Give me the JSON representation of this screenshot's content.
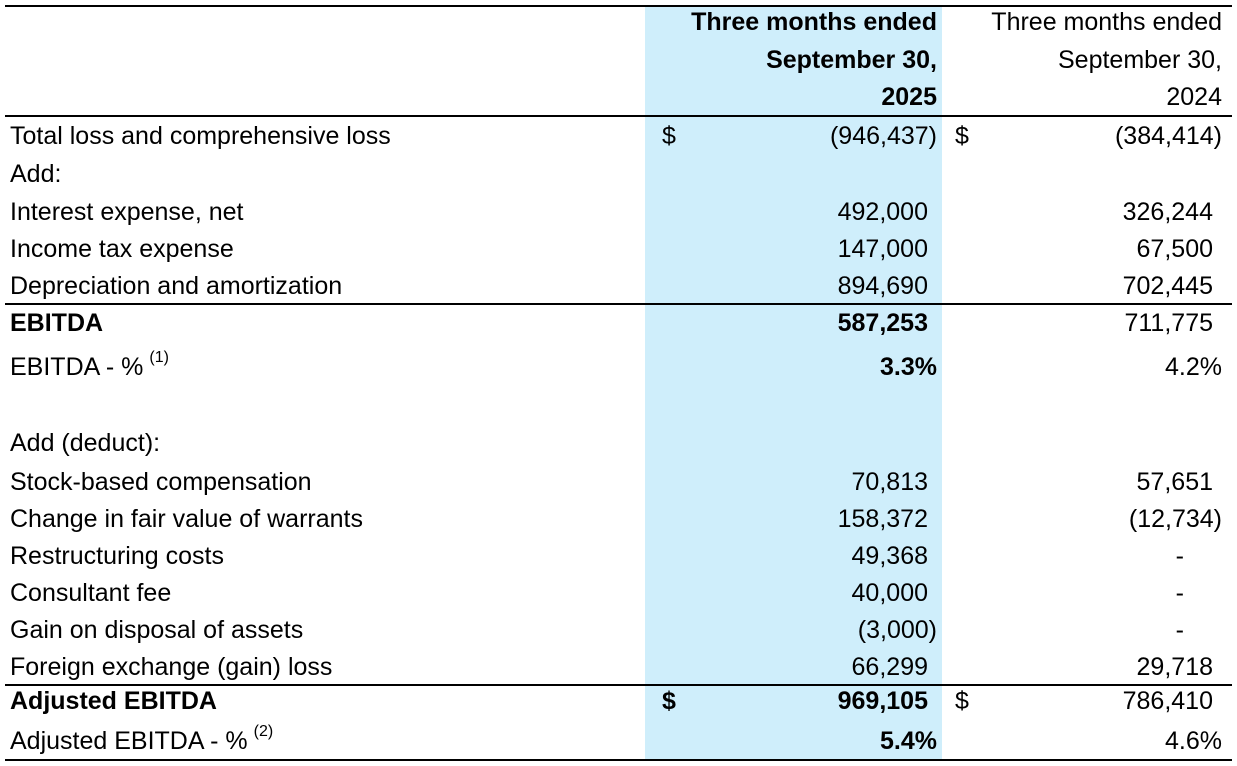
{
  "table": {
    "header": {
      "current": [
        "Three months ended",
        "September 30,",
        "2025"
      ],
      "prior": [
        "Three months ended",
        "September 30,",
        "2024"
      ]
    },
    "rows": [
      {
        "label": "Total loss and comprehensive loss",
        "current_symbol": "$",
        "current": "(946,437)",
        "prior_symbol": "$",
        "prior": "(384,414)"
      },
      {
        "label": "Add:"
      },
      {
        "label": "Interest expense, net",
        "current": "492,000",
        "prior": "326,244"
      },
      {
        "label": "Income tax expense",
        "current": "147,000",
        "prior": "67,500"
      },
      {
        "label": "Depreciation and amortization",
        "current": "894,690",
        "prior": "702,445"
      },
      {
        "label": "EBITDA",
        "current": "587,253",
        "prior": "711,775"
      },
      {
        "label": "EBITDA - %",
        "note": "(1)",
        "current": "3.3%",
        "prior": "4.2%"
      },
      {
        "label": "Add (deduct):"
      },
      {
        "label": "Stock-based compensation",
        "current": "70,813",
        "prior": "57,651"
      },
      {
        "label": "Change in fair value of warrants",
        "current": "158,372",
        "prior": "(12,734)"
      },
      {
        "label": "Restructuring costs",
        "current": "49,368",
        "prior": "-"
      },
      {
        "label": "Consultant fee",
        "current": "40,000",
        "prior": "-"
      },
      {
        "label": "Gain on disposal of assets",
        "current": "(3,000)",
        "prior": "-"
      },
      {
        "label": "Foreign exchange (gain) loss",
        "current": "66,299",
        "prior": "29,718"
      },
      {
        "label": "Adjusted EBITDA",
        "current_symbol": "$",
        "current": "969,105",
        "prior_symbol": "$",
        "prior": "786,410"
      },
      {
        "label": "Adjusted EBITDA - %",
        "note": "(2)",
        "current": "5.4%",
        "prior": "4.6%"
      }
    ]
  }
}
